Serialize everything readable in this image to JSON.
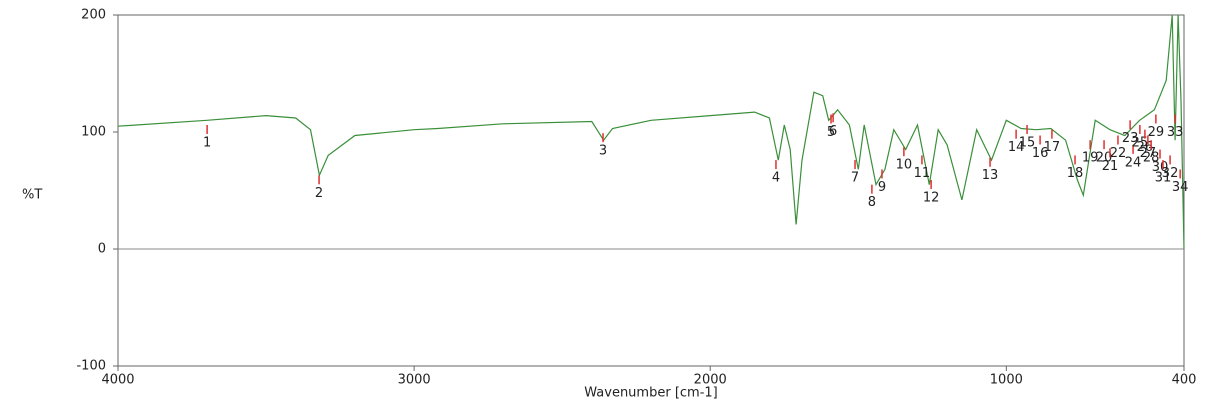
{
  "chart_data": {
    "type": "line",
    "y_label": "%T",
    "x_label": "Wavenumber [cm-1]",
    "xlim": [
      4000,
      400
    ],
    "ylim": [
      -100,
      200
    ],
    "xticks": [
      4000,
      3000,
      2000,
      1000,
      400
    ],
    "yticks": [
      200,
      100,
      0,
      -100
    ],
    "color": "#3a8f3a",
    "peak_color": "#e03030",
    "x": [
      4000,
      3700,
      3500,
      3400,
      3350,
      3320,
      3290,
      3200,
      3000,
      2920,
      2700,
      2400,
      2360,
      2330,
      2200,
      2000,
      1850,
      1800,
      1770,
      1750,
      1730,
      1710,
      1690,
      1650,
      1620,
      1600,
      1570,
      1530,
      1500,
      1480,
      1440,
      1410,
      1380,
      1340,
      1300,
      1260,
      1230,
      1200,
      1150,
      1100,
      1050,
      1000,
      950,
      900,
      850,
      800,
      760,
      740,
      700,
      650,
      600,
      550,
      500,
      460,
      440,
      430,
      420,
      410,
      400
    ],
    "values": [
      105,
      110,
      114,
      112,
      102,
      63,
      80,
      97,
      102,
      103,
      107,
      109,
      93,
      103,
      110,
      114,
      117,
      112,
      76,
      106,
      85,
      21,
      76,
      134,
      131,
      110,
      119,
      106,
      68,
      106,
      55,
      68,
      102,
      85,
      106,
      55,
      102,
      89,
      42,
      102,
      76,
      110,
      103,
      102,
      103,
      93,
      59,
      46,
      110,
      102,
      97,
      110,
      119,
      144,
      200,
      93,
      200,
      127,
      0
    ],
    "peaks": [
      {
        "label": "1",
        "x": 3699,
        "y": 106
      },
      {
        "label": "2",
        "x": 3321,
        "y": 63
      },
      {
        "label": "3",
        "x": 2362,
        "y": 99
      },
      {
        "label": "4",
        "x": 1778,
        "y": 76
      },
      {
        "label": "5",
        "x": 1592,
        "y": 115
      },
      {
        "label": "6",
        "x": 1585,
        "y": 116
      },
      {
        "label": "7",
        "x": 1511,
        "y": 76
      },
      {
        "label": "8",
        "x": 1454,
        "y": 55
      },
      {
        "label": "9",
        "x": 1420,
        "y": 68
      },
      {
        "label": "10",
        "x": 1346,
        "y": 87
      },
      {
        "label": "11",
        "x": 1285,
        "y": 80
      },
      {
        "label": "12",
        "x": 1254,
        "y": 59
      },
      {
        "label": "13",
        "x": 1055,
        "y": 78
      },
      {
        "label": "14",
        "x": 967,
        "y": 102
      },
      {
        "label": "15",
        "x": 930,
        "y": 106
      },
      {
        "label": "16",
        "x": 886,
        "y": 97
      },
      {
        "label": "17",
        "x": 846,
        "y": 102
      },
      {
        "label": "18",
        "x": 768,
        "y": 80
      },
      {
        "label": "19",
        "x": 717,
        "y": 93
      },
      {
        "label": "20",
        "x": 670,
        "y": 93
      },
      {
        "label": "21",
        "x": 650,
        "y": 86
      },
      {
        "label": "22",
        "x": 623,
        "y": 97
      },
      {
        "label": "23",
        "x": 582,
        "y": 110
      },
      {
        "label": "24",
        "x": 572,
        "y": 89
      },
      {
        "label": "25",
        "x": 549,
        "y": 106
      },
      {
        "label": "26",
        "x": 532,
        "y": 102
      },
      {
        "label": "27",
        "x": 522,
        "y": 97
      },
      {
        "label": "28",
        "x": 511,
        "y": 93
      },
      {
        "label": "29",
        "x": 495,
        "y": 115
      },
      {
        "label": "30",
        "x": 481,
        "y": 85
      },
      {
        "label": "31",
        "x": 471,
        "y": 76
      },
      {
        "label": "32",
        "x": 447,
        "y": 80
      },
      {
        "label": "33",
        "x": 430,
        "y": 115
      },
      {
        "label": "34",
        "x": 413,
        "y": 68
      }
    ]
  }
}
